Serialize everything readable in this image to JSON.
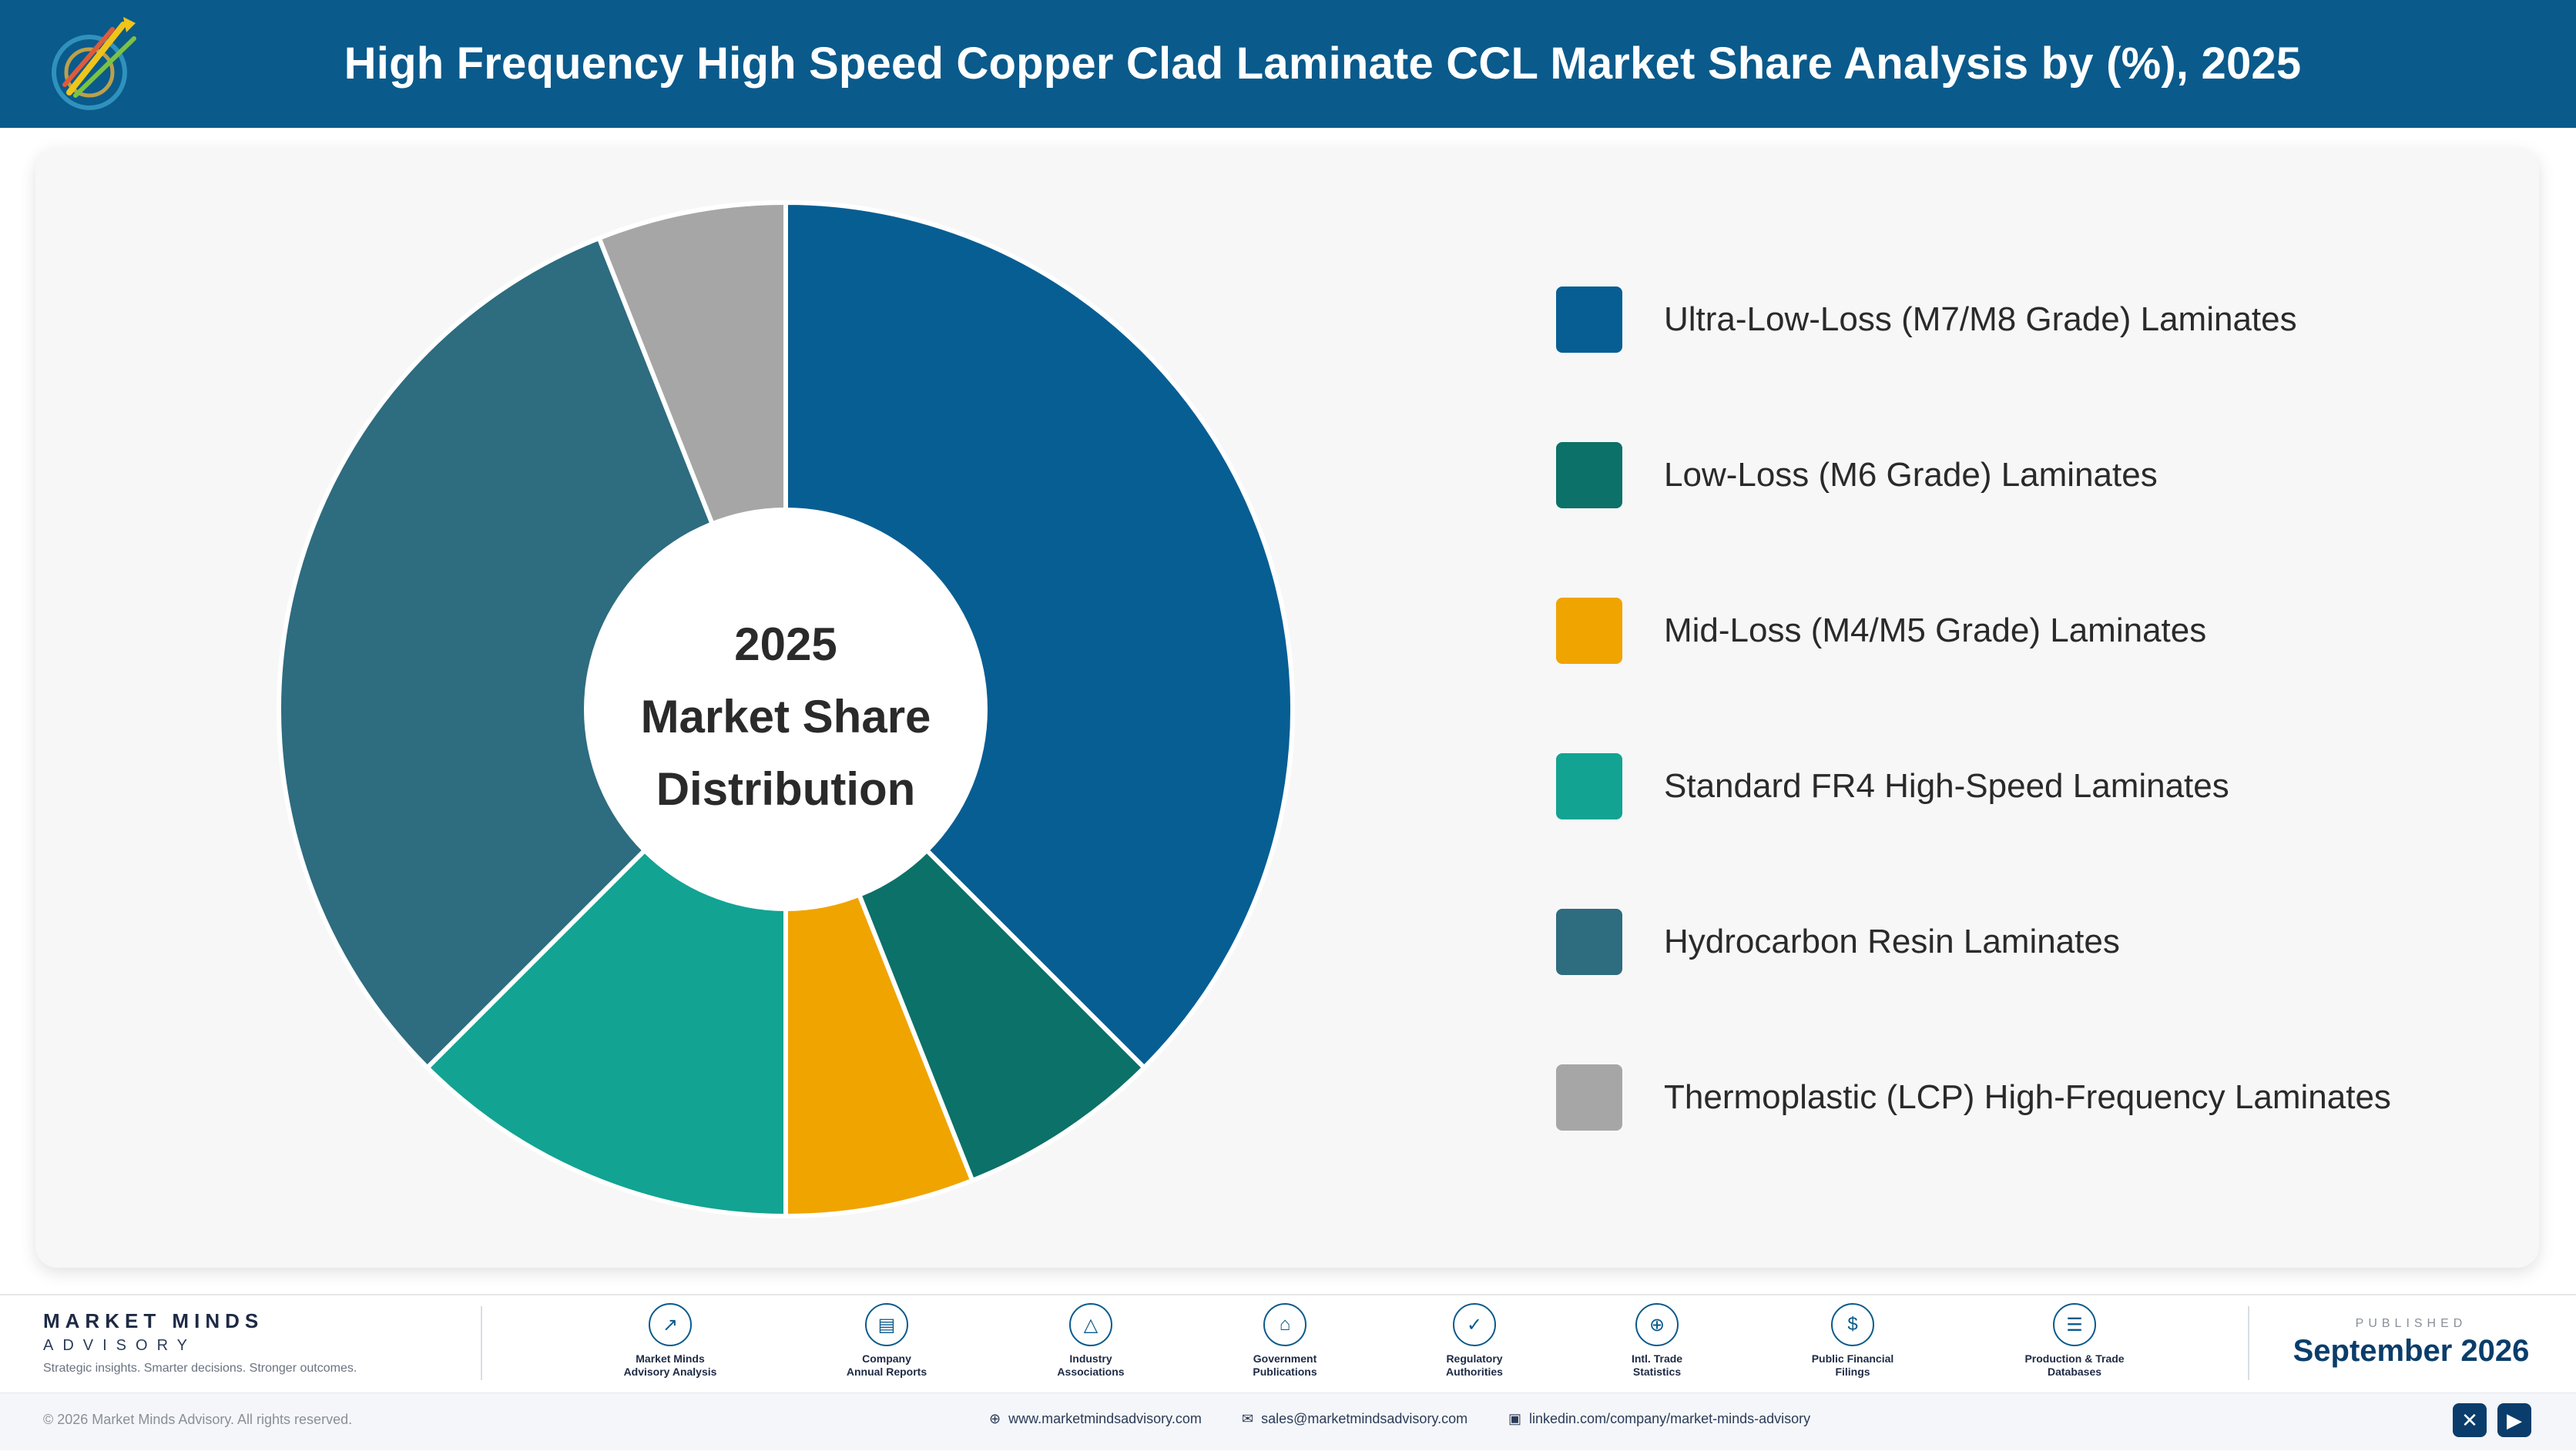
{
  "header": {
    "title": "High Frequency High Speed Copper Clad Laminate CCL Market Share Analysis by (%), 2025"
  },
  "chart_data": {
    "type": "pie",
    "title": "High Frequency High Speed Copper Clad Laminate CCL Market Share Analysis by (%), 2025",
    "center_label": [
      "2025",
      "Market Share",
      "Distribution"
    ],
    "legend_position": "right",
    "categories": [
      "Ultra-Low-Loss (M7/M8 Grade) Laminates",
      "Low-Loss (M6 Grade) Laminates",
      "Mid-Loss (M4/M5 Grade) Laminates",
      "Standard FR4 High-Speed Laminates",
      "Hydrocarbon Resin Laminates",
      "Thermoplastic (LCP) High-Frequency Laminates"
    ],
    "values": [
      37.5,
      6.5,
      6.0,
      12.5,
      31.5,
      6.0
    ],
    "colors": [
      "#075e93",
      "#0c7168",
      "#f0a400",
      "#12a393",
      "#2e6c80",
      "#a6a6a6"
    ]
  },
  "footer": {
    "brand_name": "MARKET MINDS",
    "brand_sub": "ADVISORY",
    "tagline": "Strategic insights. Smarter decisions. Stronger outcomes.",
    "sources": [
      {
        "label": "Market Minds\nAdvisory Analysis",
        "icon": "chart-line-icon"
      },
      {
        "label": "Company\nAnnual Reports",
        "icon": "document-icon"
      },
      {
        "label": "Industry\nAssociations",
        "icon": "network-icon"
      },
      {
        "label": "Government\nPublications",
        "icon": "building-icon"
      },
      {
        "label": "Regulatory\nAuthorities",
        "icon": "shield-icon"
      },
      {
        "label": "Intl. Trade\nStatistics",
        "icon": "globe-icon"
      },
      {
        "label": "Public Financial\nFilings",
        "icon": "dollar-icon"
      },
      {
        "label": "Production & Trade\nDatabases",
        "icon": "database-icon"
      }
    ],
    "published_label": "PUBLISHED",
    "published_date": "September 2026",
    "copyright": "© 2026 Market Minds Advisory. All rights reserved.",
    "website": "www.marketmindsadvisory.com",
    "email": "sales@marketmindsadvisory.com",
    "linkedin": "linkedin.com/company/market-minds-advisory"
  }
}
